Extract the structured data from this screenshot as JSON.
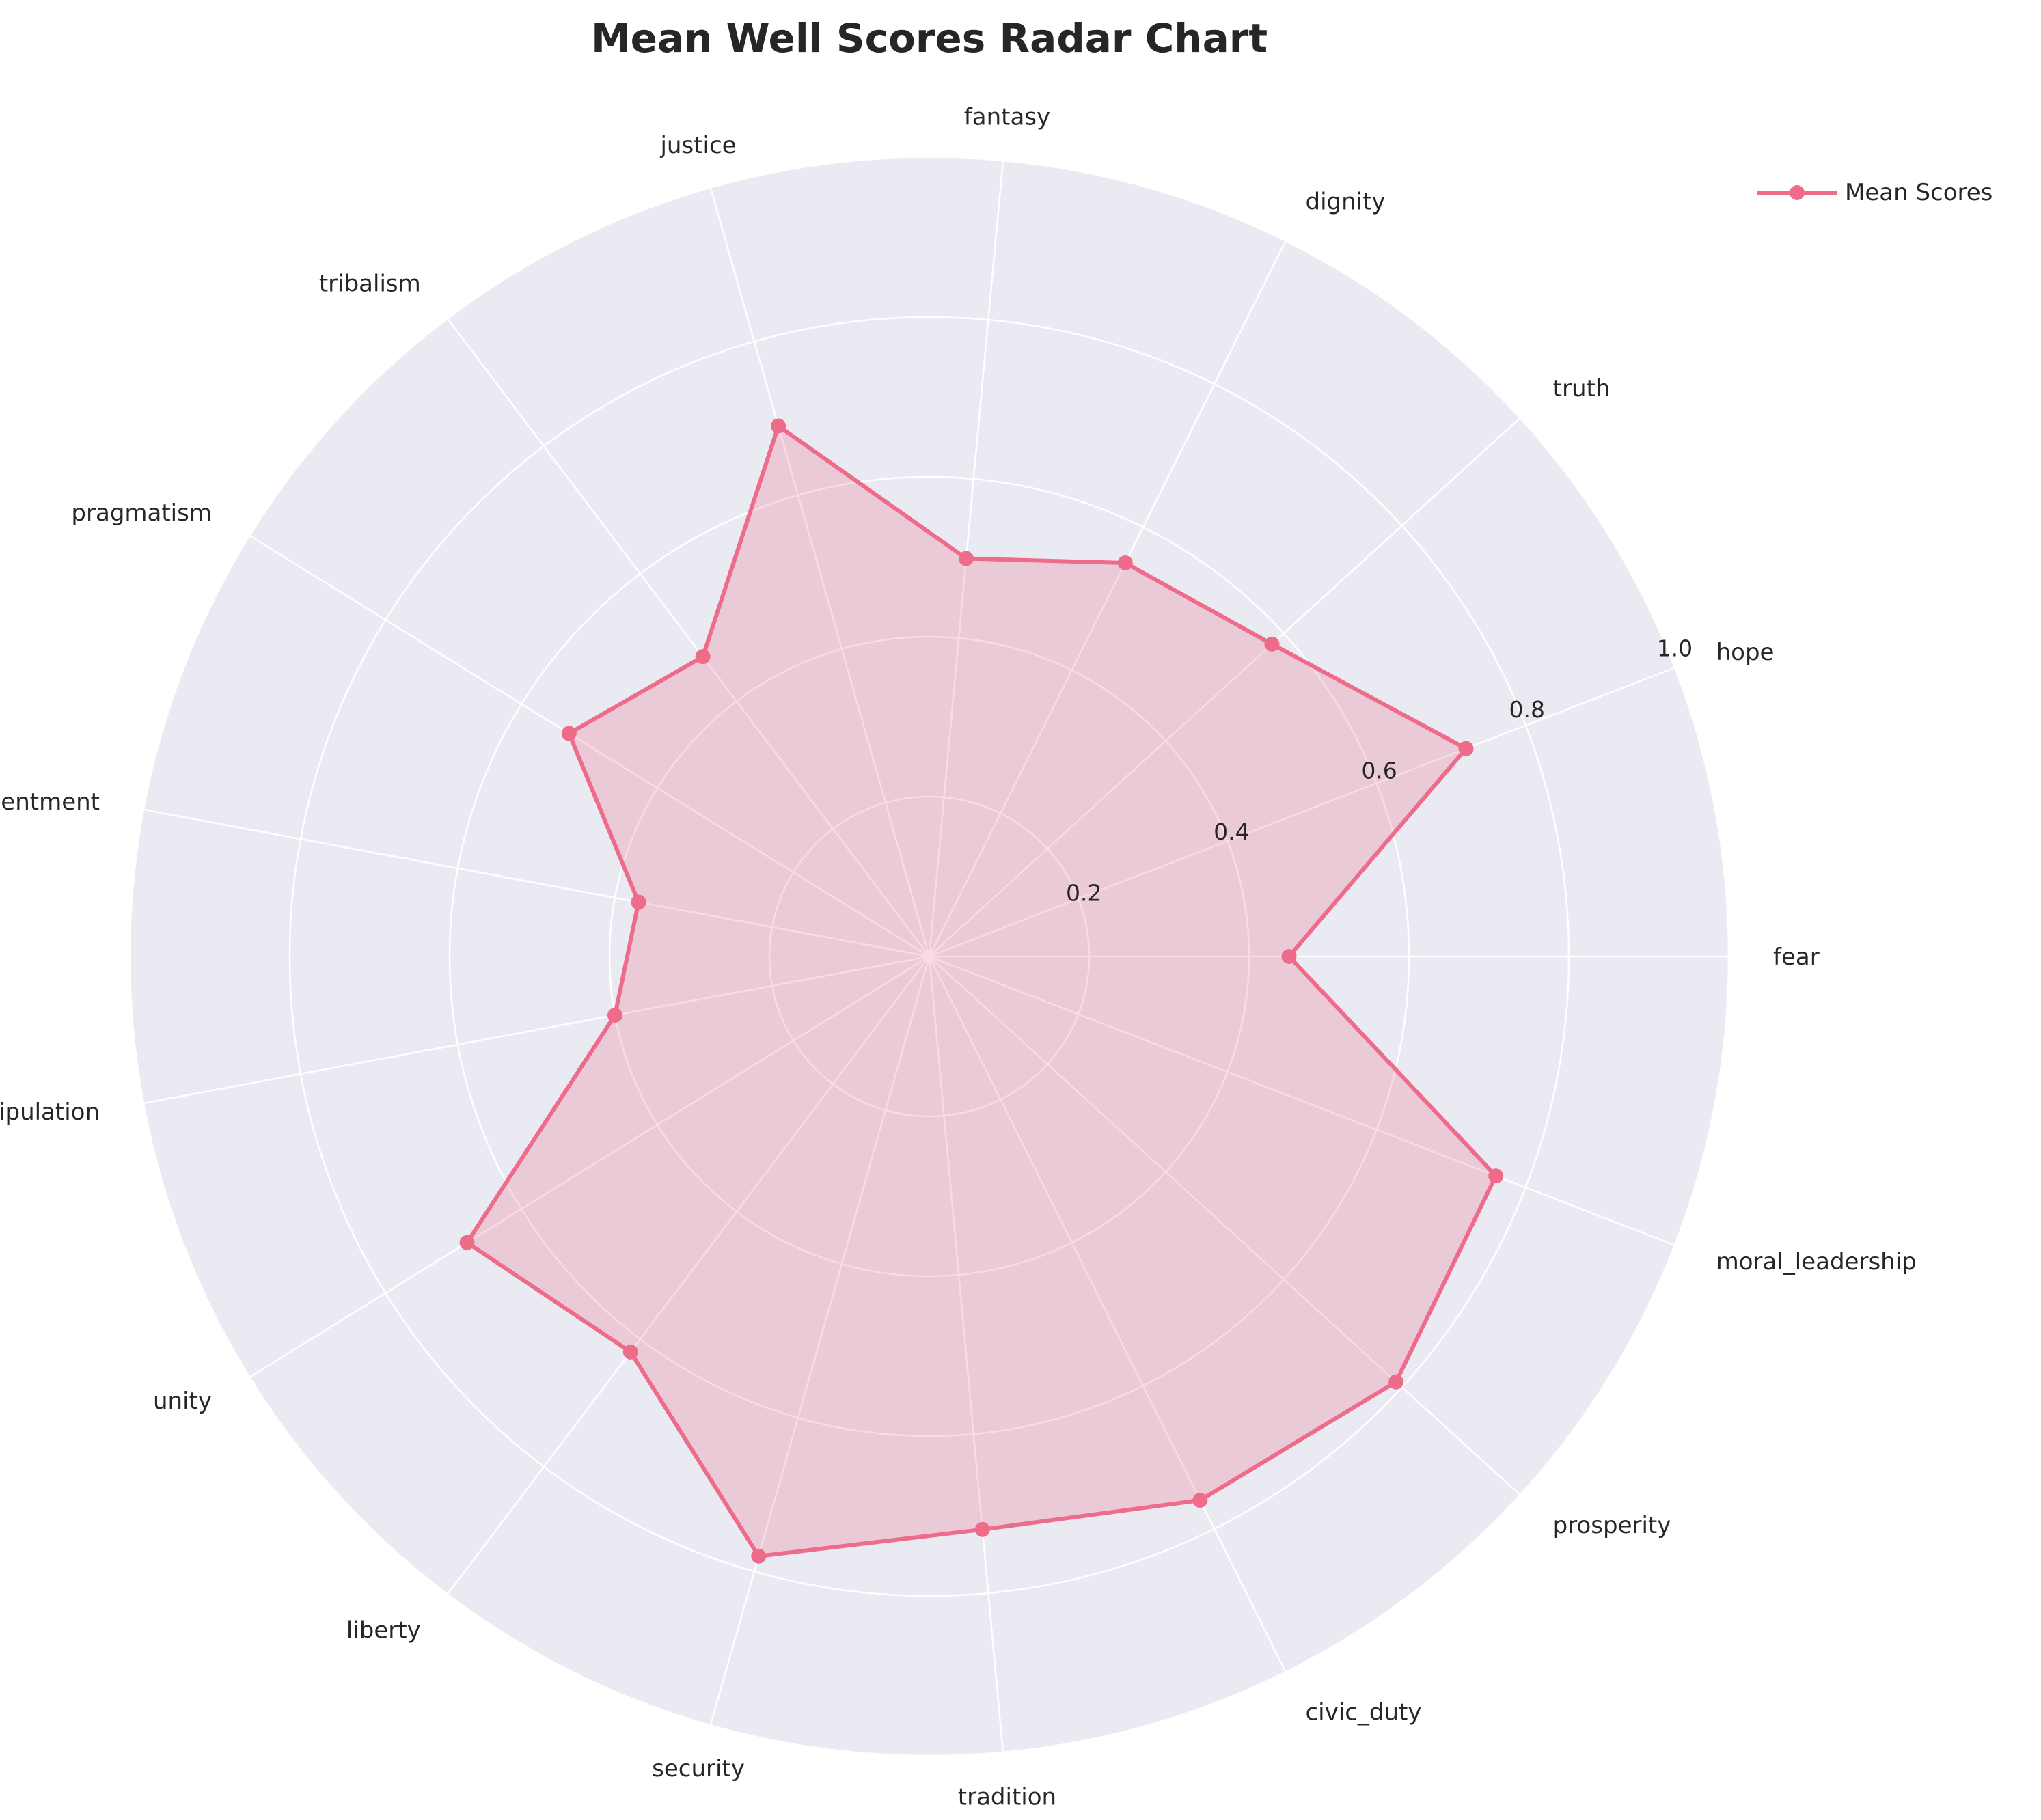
{
  "chart_data": {
    "type": "radar",
    "title": "Mean Well Scores Radar Chart",
    "categories": [
      "fear",
      "hope",
      "truth",
      "dignity",
      "fantasy",
      "justice",
      "tribalism",
      "pragmatism",
      "resentment",
      "manipulation",
      "unity",
      "liberty",
      "security",
      "tradition",
      "civic_duty",
      "prosperity",
      "moral_leadership"
    ],
    "series": [
      {
        "name": "Mean Scores",
        "values": [
          0.45,
          0.72,
          0.58,
          0.55,
          0.5,
          0.69,
          0.47,
          0.53,
          0.37,
          0.4,
          0.68,
          0.62,
          0.78,
          0.72,
          0.76,
          0.79,
          0.76
        ],
        "color": "#ee6b8a"
      }
    ],
    "rlim": [
      0,
      1.0
    ],
    "r_ticks": [
      "0.2",
      "0.4",
      "0.6",
      "0.8",
      "1.0"
    ],
    "grid": true,
    "legend_position": "top-right"
  }
}
